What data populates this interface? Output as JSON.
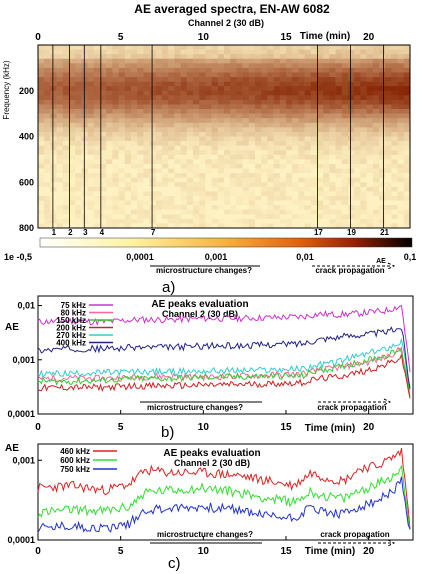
{
  "colors": {
    "spectrogram_low": "#fff2c2",
    "spectrogram_mid": "#f2a030",
    "spectrogram_high": "#b83a0a",
    "spectrogram_max": "#701000",
    "colorbar_dark": "#000000",
    "line_75": "#cc33cc",
    "line_80": "#ff6699",
    "line_150": "#33cc33",
    "line_200": "#cc2222",
    "line_270": "#33cccc",
    "line_400": "#222288",
    "line_460": "#dd2222",
    "line_600": "#33dd33",
    "line_750": "#2233cc"
  },
  "chart_data": [
    {
      "id": "a",
      "type": "heatmap",
      "title": "AE averaged spectra, EN-AW 6082",
      "subtitle": "Channel 2 (30 dB)",
      "xlabel": "Time (min)",
      "ylabel": "Frequency (kHz)",
      "xlim": [
        0,
        22.5
      ],
      "ylim": [
        800,
        0
      ],
      "x_ticks": [
        "0",
        "5",
        "10",
        "15",
        "20"
      ],
      "x_tick_values": [
        0,
        5,
        10,
        15,
        20
      ],
      "y_ticks": [
        "200",
        "400",
        "600",
        "800"
      ],
      "y_tick_values": [
        200,
        400,
        600,
        800
      ],
      "event_lines": [
        {
          "label": "1",
          "time": 0.9
        },
        {
          "label": "2",
          "time": 1.9
        },
        {
          "label": "3",
          "time": 2.8
        },
        {
          "label": "4",
          "time": 3.8
        },
        {
          "label": "7",
          "time": 6.9
        },
        {
          "label": "17",
          "time": 16.9
        },
        {
          "label": "19",
          "time": 18.9
        },
        {
          "label": "21",
          "time": 20.9
        }
      ],
      "colorbar": {
        "labels": [
          "1e -0,5",
          "0,0001",
          "0,001",
          "0,01",
          "0,1"
        ],
        "unit": "AE",
        "scale": "log"
      },
      "annotations": [
        "microstructure changes?",
        "crack propagation"
      ],
      "panel_label": "a)"
    },
    {
      "id": "b",
      "type": "line",
      "title": "AE peaks evaluation",
      "subtitle": "Channel 2 (30 dB)",
      "xlabel": "Time (min)",
      "ylabel": "AE",
      "scale": "log",
      "xlim": [
        0,
        22.5
      ],
      "ylim": [
        0.0001,
        0.015
      ],
      "x_ticks": [
        "0",
        "5",
        "10",
        "15",
        "20"
      ],
      "x_tick_values": [
        0,
        5,
        10,
        15,
        20
      ],
      "y_ticks": [
        "0,0001",
        "0,001",
        "0,01"
      ],
      "y_tick_values": [
        0.0001,
        0.001,
        0.01
      ],
      "series": [
        {
          "name": "75 kHz",
          "color": "#cc33cc",
          "x": [
            0,
            2,
            4,
            6,
            8,
            10,
            12,
            14,
            16,
            17,
            18,
            19,
            20,
            21,
            22,
            22.5
          ],
          "values": [
            0.005,
            0.0052,
            0.005,
            0.0055,
            0.0055,
            0.0058,
            0.0058,
            0.006,
            0.0062,
            0.007,
            0.0068,
            0.007,
            0.0075,
            0.008,
            0.01,
            0.0006
          ]
        },
        {
          "name": "80 kHz",
          "color": "#ff6699",
          "x": [
            0,
            2,
            4,
            6,
            8,
            10,
            12,
            14,
            16,
            17,
            18,
            19,
            20,
            21,
            22,
            22.5
          ],
          "values": [
            0.00045,
            0.00046,
            0.00045,
            0.00048,
            0.0005,
            0.00048,
            0.0005,
            0.00052,
            0.00055,
            0.00065,
            0.0007,
            0.0008,
            0.0009,
            0.0011,
            0.0016,
            0.00025
          ]
        },
        {
          "name": "150 kHz",
          "color": "#33cc33",
          "x": [
            0,
            2,
            4,
            6,
            8,
            10,
            12,
            14,
            16,
            17,
            18,
            19,
            20,
            21,
            22,
            22.5
          ],
          "values": [
            0.0004,
            0.0004,
            0.00042,
            0.00045,
            0.00045,
            0.00048,
            0.00048,
            0.0005,
            0.0005,
            0.00065,
            0.0007,
            0.00085,
            0.001,
            0.0012,
            0.0015,
            0.00022
          ]
        },
        {
          "name": "200 kHz",
          "color": "#cc2222",
          "x": [
            0,
            2,
            4,
            6,
            8,
            10,
            12,
            14,
            16,
            17,
            18,
            19,
            20,
            21,
            22,
            22.5
          ],
          "values": [
            0.0003,
            0.00031,
            0.00031,
            0.00033,
            0.00033,
            0.00034,
            0.00035,
            0.00036,
            0.00038,
            0.00045,
            0.00048,
            0.00055,
            0.00065,
            0.0008,
            0.0011,
            0.0002
          ]
        },
        {
          "name": "270 kHz",
          "color": "#33cccc",
          "x": [
            0,
            2,
            4,
            6,
            8,
            10,
            12,
            14,
            16,
            17,
            18,
            19,
            20,
            21,
            22,
            22.5
          ],
          "values": [
            0.00055,
            0.00056,
            0.00058,
            0.0006,
            0.0006,
            0.00062,
            0.00063,
            0.00065,
            0.00068,
            0.0008,
            0.0009,
            0.0011,
            0.0013,
            0.0016,
            0.0022,
            0.0003
          ]
        },
        {
          "name": "400 kHz",
          "color": "#222288",
          "x": [
            0,
            2,
            4,
            6,
            8,
            10,
            12,
            14,
            16,
            17,
            18,
            19,
            20,
            21,
            22,
            22.5
          ],
          "values": [
            0.0015,
            0.0016,
            0.0016,
            0.0017,
            0.0017,
            0.0018,
            0.0018,
            0.0019,
            0.002,
            0.0024,
            0.0026,
            0.0028,
            0.003,
            0.0032,
            0.004,
            0.0003
          ]
        }
      ],
      "annotations": [
        "microstructure changes?",
        "crack propagation"
      ],
      "panel_label": "b)"
    },
    {
      "id": "c",
      "type": "line",
      "title": "AE peaks evaluation",
      "subtitle": "Channel 2 (30 dB)",
      "xlabel": "Time (min)",
      "ylabel": "AE",
      "scale": "log",
      "xlim": [
        0,
        22.5
      ],
      "ylim": [
        0.0001,
        0.0016
      ],
      "x_ticks": [
        "0",
        "5",
        "10",
        "15",
        "20"
      ],
      "x_tick_values": [
        0,
        5,
        10,
        15,
        20
      ],
      "y_ticks": [
        "0,0001",
        "0,001"
      ],
      "y_tick_values": [
        0.0001,
        0.001
      ],
      "series": [
        {
          "name": "460 kHz",
          "color": "#dd2222",
          "x": [
            0,
            2,
            4,
            5.5,
            6.5,
            8,
            10,
            12,
            14,
            15.5,
            16.5,
            17.5,
            18.5,
            19.5,
            20.5,
            21.5,
            22,
            22.5
          ],
          "values": [
            0.00045,
            0.00048,
            0.00042,
            0.0005,
            0.00075,
            0.0007,
            0.0007,
            0.00065,
            0.00055,
            0.00048,
            0.0007,
            0.0006,
            0.00055,
            0.0008,
            0.00085,
            0.0011,
            0.0013,
            0.00015
          ]
        },
        {
          "name": "600 kHz",
          "color": "#33dd33",
          "x": [
            0,
            2,
            4,
            5.5,
            6.5,
            8,
            10,
            12,
            14,
            15.5,
            16.5,
            17.5,
            18.5,
            19.5,
            20.5,
            21.5,
            22,
            22.5
          ],
          "values": [
            0.00022,
            0.00024,
            0.00023,
            0.00026,
            0.0004,
            0.00042,
            0.00045,
            0.0004,
            0.00033,
            0.0003,
            0.0004,
            0.00035,
            0.00033,
            0.00042,
            0.0005,
            0.00065,
            0.0008,
            0.00014
          ]
        },
        {
          "name": "750 kHz",
          "color": "#2233cc",
          "x": [
            0,
            2,
            4,
            5.5,
            6.5,
            8,
            10,
            12,
            14,
            15.5,
            16.5,
            17.5,
            18.5,
            19.5,
            20.5,
            21.5,
            22,
            22.5
          ],
          "values": [
            0.00014,
            0.00015,
            0.00014,
            0.00016,
            0.00024,
            0.00025,
            0.00026,
            0.00024,
            0.0002,
            0.00019,
            0.00026,
            0.00022,
            0.00021,
            0.00026,
            0.0003,
            0.00042,
            0.00055,
            0.00013
          ]
        }
      ],
      "annotations": [
        "microstructure changes?",
        "crack propagation"
      ],
      "panel_label": "c)"
    }
  ]
}
